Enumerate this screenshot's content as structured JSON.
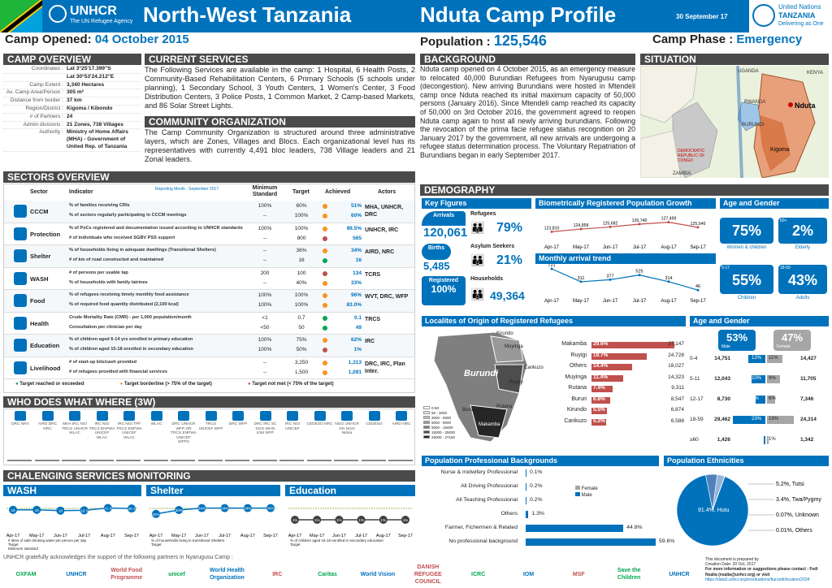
{
  "header": {
    "unhcr": "UNHCR",
    "unhcr_tag": "The UN Refugee Agency",
    "region": "North-West Tanzania",
    "title": "Nduta Camp Profile",
    "date": "30 September 17",
    "un_name": "United Nations",
    "un_country": "TANZANIA",
    "un_tag": "Delivering as One"
  },
  "summary": {
    "opened_label": "Camp Opened:",
    "opened": "04 October 2015",
    "pop_label": "Population :",
    "population": "125,546",
    "phase_label": "Camp Phase :",
    "phase": "Emergency"
  },
  "overview": {
    "title": "CAMP OVERVIEW",
    "rows": [
      [
        "Coordinates :",
        "Lat 3°25'17.399\"S"
      ],
      [
        "",
        "Lat 30°53'24.212\"E"
      ],
      [
        "Camp Extent :",
        "3,340 Hectares"
      ],
      [
        "Av. Camp Area/Person :",
        "305 m²"
      ],
      [
        "Distance from border :",
        "37 km"
      ],
      [
        "Region/District :",
        "Kigoma / Kibondo"
      ],
      [
        "# of Partners :",
        "24"
      ],
      [
        "Admin divisions :",
        "21 Zones, 738 Villages"
      ],
      [
        "Authority :",
        "Ministry of Home Affairs (MHA) - Government of United Rep. of Tanzania"
      ]
    ]
  },
  "services": {
    "title": "CURRENT SERVICES",
    "text": "The Following Services are available in the camp: 1 Hospital, 6 Health Posts, 2 Community-Based Rehabilitation Centers, 6 Primary Schools (5 schools under planning), 1 Secondary School, 3 Youth Centers, 1 Women's Center, 3 Food Distribution Centers, 3 Police Posts, 1 Common Market, 2 Camp-based Markets, and 86 Solar Street Lights."
  },
  "community": {
    "title": "COMMUNITY ORGANIZATION",
    "text": "The Camp Community Organization is structured around three administrative layers, which are Zones, Villages and Blocs. Each organizational level has its representatives with currently 4,491 bloc leaders, 738 Village leaders and 21 Zonal leaders."
  },
  "background": {
    "title": "BACKGROUND",
    "text": "Nduta camp opened on 4 October 2015, as an emergency measure to relocated 40,000 Burundian Refugees from Nyarugusu camp (decongestion). New arriving Burundians were hosted in Mtendeli camp once Nduta reached its initial maximum capacity of 50,000 persons (January 2016). Since Mtendeli camp reached its capacity of 50,000 on 3rd October 2016, the government agreed to reopen Nduta camp again to host all newly arriving burundians. Following the revocation of the prima facie refugee status recognition on 20 January 2017 by the government, all new arrivals are undergoing a refugee status determination process. The Voluntary Repatriation of Burundians began in early September 2017."
  },
  "situation": {
    "title": "SITUATION",
    "labels": [
      "UGANDA",
      "RWANDA",
      "KENYA",
      "BURUNDI",
      "Nduta",
      "Kigoma",
      "DEMOCRATIC REPUBLIC OF CONGO",
      "ZAMBIA"
    ]
  },
  "sectors": {
    "title": "SECTORS OVERVIEW",
    "reporting": "Reporting Month : September 2017",
    "cols": [
      "Sector",
      "Indicator",
      "Minimum Standard",
      "Target",
      "Achieved",
      "Actors"
    ],
    "rows": [
      {
        "sector": "CCCM",
        "actors": "MHA, UNHCR, DRC",
        "ind": [
          [
            "% of families receiving CRIs",
            "100%",
            "60%",
            "51%",
            "o"
          ],
          [
            "% of sectors regularly participating in CCCM meetings",
            "--",
            "100%",
            "60%",
            "o"
          ]
        ]
      },
      {
        "sector": "Protection",
        "actors": "UNHCR, IRC",
        "ind": [
          [
            "% of PoCs registered and documentation issued according to UNHCR standards",
            "100%",
            "100%",
            "99.5%",
            "o"
          ],
          [
            "# of individuals who received SGBV PSS support",
            "--",
            "800",
            "565",
            "r"
          ]
        ]
      },
      {
        "sector": "Shelter",
        "actors": "AIRD, NRC",
        "ind": [
          [
            "% of households living in adequate dwellings (Transitional Shelters)",
            "--",
            "36%",
            "34%",
            "o"
          ],
          [
            "# of km of road constructed and maintained",
            "--",
            "16",
            "16",
            "g"
          ]
        ]
      },
      {
        "sector": "WASH",
        "actors": "TCRS",
        "ind": [
          [
            "# of persons per usable tap",
            "200",
            "100",
            "134",
            "r"
          ],
          [
            "% of households with family latrines",
            "--",
            "40%",
            "33%",
            "o"
          ]
        ]
      },
      {
        "sector": "Food",
        "actors": "WVT, DRC, WFP",
        "ind": [
          [
            "% of refugees receiving timely monthly food assistance",
            "100%",
            "100%",
            "96%",
            "o"
          ],
          [
            "% of required food quantity distributed (2,100 kcal)",
            "100%",
            "100%",
            "83.0%",
            "o"
          ]
        ]
      },
      {
        "sector": "Health",
        "actors": "TRCS",
        "ind": [
          [
            "Crude Mortality Rate (CMR) - per 1,000 population/month",
            "<1",
            "0.7",
            "0.1",
            "g"
          ],
          [
            "Consultation per clinician per day",
            "<50",
            "50",
            "49",
            "g"
          ]
        ]
      },
      {
        "sector": "Education",
        "actors": "IRC",
        "ind": [
          [
            "% of children aged 6-14 yrs enrolled in primary education",
            "100%",
            "75%",
            "62%",
            "o"
          ],
          [
            "% of children aged 15-18 enrolled in secondary education",
            "100%",
            "50%",
            "1%",
            "r"
          ]
        ]
      },
      {
        "sector": "Livelihood",
        "actors": "DRC, IRC, Plan Inter.",
        "ind": [
          [
            "# of start-up kits/cash provided",
            "--",
            "3,250",
            "1,313",
            "o"
          ],
          [
            "# of refugees provided with financial services",
            "--",
            "1,500",
            "1,091",
            "o"
          ]
        ]
      }
    ],
    "legend": [
      "Target reached or exceeded",
      "Target borderline (> 75% of the target)",
      "Target not met (< 75% of the target)"
    ]
  },
  "www": {
    "title": "WHO DOES WHAT WHERE (3W)",
    "actors": [
      "DRC NRA",
      "AIRD DRC NRC",
      "MHA IRC NGI TRCS UNHCR WLAC",
      "IRC NGI TRCS ENPWA UNICEF WLAC",
      "IRC NGI TPF TRCS ENPWA UNICEF WLAC",
      "WLAC",
      "DRC UNHCR WFP OR TRCS ENPWA UNICEF WFPS",
      "TRCS UNICEF WFP",
      "DRC WFP",
      "DRC IRC SC NGO WHO IOM WFP",
      "IRC NGI UNICEF",
      "CEDESO NRC",
      "NGO UNHCR ON NGO Nduta",
      "CEDESO",
      "AIRD NRC"
    ]
  },
  "monitoring": {
    "title": "CHALENGING SERVICES MONITORING",
    "wash": {
      "title": "WASH",
      "months": [
        "Apr-17",
        "May-17",
        "Jun-17",
        "Jul-17",
        "Aug-17",
        "Sep-17"
      ],
      "values": [
        19,
        19,
        18,
        18.3,
        21.4,
        20.7
      ],
      "legend": [
        "# litres of safe drinking water per person per day",
        "Target",
        "Minimum standard"
      ]
    },
    "shelter": {
      "title": "Shelter",
      "months": [
        "Apr-17",
        "May-17",
        "Jun-17",
        "Jul-17",
        "Aug-17",
        "Sep-17"
      ],
      "values": [
        22,
        30,
        34,
        34,
        34,
        34
      ],
      "legend": [
        "% of households living in transitional Shelters",
        "Target"
      ]
    },
    "education": {
      "title": "Education",
      "months": [
        "Apr-17",
        "May-17",
        "Jun-17",
        "Jul-17",
        "Aug-17",
        "Sep-17"
      ],
      "values": [
        1,
        1,
        1,
        1,
        1,
        1
      ],
      "legend": [
        "% of children aged 15-18 enrolled in secondary education",
        "Target"
      ]
    }
  },
  "demography": {
    "title": "DEMOGRAPHY",
    "key": {
      "title": "Key Figures",
      "arrivals_label": "Arrivals",
      "arrivals": "120,061",
      "births_label": "Births",
      "births": "5,485",
      "registered_label": "Registered",
      "registered": "100%",
      "refugees_label": "Refugees",
      "refugees": "79%",
      "asylum_label": "Asylum Seekers",
      "asylum": "21%",
      "households_label": "Households",
      "households": "49,364"
    },
    "growth": {
      "title": "Biometrically Registered Population Growth",
      "months": [
        "Apr-17",
        "May-17",
        "Jun-17",
        "Jul-17",
        "Aug-17",
        "Sep-17"
      ],
      "values": [
        123810,
        124858,
        125682,
        126740,
        127499,
        125546
      ],
      "labels": [
        "123,810",
        "124,858",
        "125,682",
        "126,740",
        "127,499",
        "125,546"
      ]
    },
    "arrival": {
      "title": "Monthly arrival trend",
      "months": [
        "Apr-17",
        "May-17",
        "Jun-17",
        "Jul-17",
        "Aug-17",
        "Sep-17"
      ],
      "values": [
        721,
        311,
        377,
        525,
        314,
        46
      ]
    },
    "age": {
      "title": "Age and Gender",
      "wc": "75%",
      "wc_label": "Women & children",
      "elderly": "2%",
      "elderly_tag": "60+",
      "elderly_label": "Elderly",
      "children": "55%",
      "children_tag": "0-17",
      "children_label": "Children",
      "adults": "43%",
      "adults_tag": "18-59",
      "adults_label": "Adults"
    },
    "origin": {
      "title": "Localites of Origin of Registered Refugees",
      "rows": [
        [
          "Makamba",
          "29.6%",
          "37,147"
        ],
        [
          "Ruyigi",
          "19.7%",
          "24,728"
        ],
        [
          "Others",
          "14.4%",
          "18,027"
        ],
        [
          "Muyinga",
          "11.4%",
          "14,323"
        ],
        [
          "Rutana",
          "7.4%",
          "9,311"
        ],
        [
          "Bururi",
          "6.8%",
          "8,547"
        ],
        [
          "Kirundo",
          "5.5%",
          "6,874"
        ],
        [
          "Cankuzo",
          "5.2%",
          "6,588"
        ]
      ],
      "map_labels": [
        "Burundi",
        "Kirundo",
        "Muyinga",
        "Cankuzo",
        "Ruyigi",
        "Rutana",
        "Bururi",
        "Makamba"
      ],
      "legend": [
        "0-50",
        "50 - 3000",
        "3000 - 6000",
        "6000 - 9000",
        "9000 - 15000",
        "15000 - 25000",
        "25000 - 37150"
      ]
    },
    "age2": {
      "title": "Age and Gender",
      "male": "53%",
      "male_label": "Male",
      "female": "47%",
      "female_label": "Female",
      "rows": [
        [
          "0-4",
          "14,751",
          "12%",
          "11%",
          "14,427"
        ],
        [
          "5-11",
          "12,043",
          "10%",
          "9%",
          "11,705"
        ],
        [
          "12-17",
          "8,730",
          "7%",
          "6%",
          "7,346"
        ],
        [
          "18-59",
          "29,462",
          "23%",
          "19%",
          "24,314"
        ],
        [
          "≥60",
          "1,426",
          "1%",
          "1%",
          "1,342"
        ]
      ]
    }
  },
  "professional": {
    "title": "Population Professional Backgrounds",
    "rows": [
      [
        "Nurse & midwifery Professional",
        "0.1%"
      ],
      [
        "All Driving Professional",
        "0.2%"
      ],
      [
        "All Teaching Professional",
        "0.2%"
      ],
      [
        "Others",
        "1.3%"
      ],
      [
        "Farmer, Fichermen & Related",
        "44.8%"
      ],
      [
        "No professional background",
        "59.6%"
      ]
    ],
    "legend": [
      "Female",
      "Male"
    ]
  },
  "ethnicities": {
    "title": "Population Ethnicities",
    "slices": [
      [
        "Hutu",
        "91.4%",
        91.4
      ],
      [
        "Tutsi",
        "5.2%",
        5.2
      ],
      [
        "Twa/Pygmy",
        "3.4%",
        3.4
      ],
      [
        "Unknown",
        "0.07%",
        0.07
      ],
      [
        "Others",
        "0.01%",
        0.01
      ]
    ]
  },
  "footer": {
    "ack": "UNHCR gratefully acknowledges the support of the following partners in Nyarugusu Camp :",
    "logos": [
      "OXFAM",
      "UNHCR",
      "World Food Programme",
      "unicef",
      "World Health Organization",
      "IRC",
      "Caritas",
      "World Vision",
      "DANISH REFUGEE COUNCIL",
      "ICRC",
      "IOM",
      "MSF",
      "Save the Children",
      "UNHCR"
    ],
    "prepared": "This document is prepared by",
    "creation": "Creation Date: 20 Oct, 2017",
    "contact": "For more information or suggestions please contact : Fedi Nsalia (nsalia@unhcr.org) or visit",
    "url": "https://data2.unhcr.org/en/situations/burundi/location/2034"
  },
  "colors": {
    "blue": "#0072bc",
    "red": "#c0504d",
    "green": "#00a651",
    "orange": "#f7941d",
    "grey": "#4a4a4a"
  }
}
